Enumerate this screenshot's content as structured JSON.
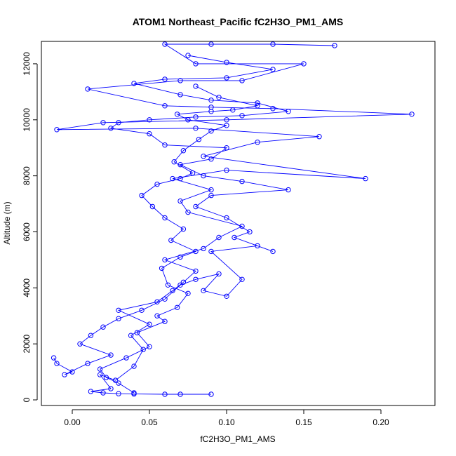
{
  "chart_data": {
    "type": "scatter",
    "title": "ATOM1 Northeast_Pacific fC2H3O_PM1_AMS",
    "xlabel": "fC2H3O_PM1_AMS",
    "ylabel": "Altitude (m)",
    "xlim": [
      -0.02,
      0.235
    ],
    "ylim": [
      -200,
      12800
    ],
    "xticks": [
      0.0,
      0.05,
      0.1,
      0.15,
      0.2
    ],
    "xtick_labels": [
      "0.00",
      "0.05",
      "0.10",
      "0.15",
      "0.20"
    ],
    "yticks": [
      0,
      2000,
      4000,
      6000,
      8000,
      10000,
      12000
    ],
    "ytick_labels": [
      "0",
      "2000",
      "4000",
      "6000",
      "8000",
      "10000",
      "12000"
    ],
    "grid": false,
    "connected": true,
    "marker": "open-circle",
    "color": "#0000ff",
    "series": [
      {
        "name": "",
        "points": [
          [
            0.09,
            200
          ],
          [
            0.07,
            200
          ],
          [
            0.06,
            200
          ],
          [
            0.04,
            210
          ],
          [
            0.03,
            220
          ],
          [
            0.02,
            250
          ],
          [
            0.012,
            300
          ],
          [
            0.025,
            400
          ],
          [
            0.018,
            900
          ],
          [
            0.028,
            700
          ],
          [
            0.04,
            1200
          ],
          [
            0.046,
            1800
          ],
          [
            0.038,
            2300
          ],
          [
            0.05,
            2700
          ],
          [
            0.03,
            3200
          ],
          [
            0.055,
            3500
          ],
          [
            0.065,
            3900
          ],
          [
            0.072,
            4200
          ],
          [
            0.08,
            4600
          ],
          [
            0.06,
            5000
          ],
          [
            0.085,
            5400
          ],
          [
            0.095,
            5800
          ],
          [
            0.11,
            6200
          ],
          [
            0.075,
            6700
          ],
          [
            0.07,
            7100
          ],
          [
            0.09,
            7500
          ],
          [
            0.065,
            7900
          ],
          [
            0.1,
            8200
          ],
          [
            0.19,
            7900
          ],
          [
            0.085,
            8700
          ],
          [
            0.12,
            9200
          ],
          [
            0.16,
            9400
          ],
          [
            0.08,
            9700
          ],
          [
            -0.01,
            9650
          ],
          [
            0.02,
            9900
          ],
          [
            0.1,
            10000
          ],
          [
            0.22,
            10200
          ],
          [
            0.13,
            10400
          ],
          [
            0.09,
            10450
          ],
          [
            0.06,
            10500
          ],
          [
            0.01,
            11100
          ],
          [
            0.07,
            11400
          ],
          [
            0.11,
            11400
          ],
          [
            0.15,
            12000
          ],
          [
            0.08,
            12000
          ],
          [
            0.06,
            12700
          ],
          [
            0.09,
            12700
          ],
          [
            0.13,
            12700
          ],
          [
            0.17,
            12650
          ]
        ]
      },
      {
        "name": "",
        "points": [
          [
            -0.012,
            1500
          ],
          [
            -0.01,
            1300
          ],
          [
            0.0,
            1000
          ],
          [
            -0.005,
            900
          ],
          [
            0.01,
            1300
          ],
          [
            0.025,
            1600
          ],
          [
            0.005,
            2000
          ],
          [
            0.012,
            2300
          ],
          [
            0.02,
            2600
          ],
          [
            0.03,
            2900
          ],
          [
            0.045,
            3200
          ],
          [
            0.06,
            3600
          ],
          [
            0.07,
            4100
          ],
          [
            0.08,
            4300
          ],
          [
            0.095,
            4500
          ],
          [
            0.085,
            3900
          ],
          [
            0.1,
            3700
          ],
          [
            0.11,
            4300
          ],
          [
            0.09,
            5300
          ],
          [
            0.12,
            5500
          ],
          [
            0.13,
            5300
          ],
          [
            0.105,
            5800
          ],
          [
            0.115,
            6000
          ],
          [
            0.1,
            6500
          ],
          [
            0.08,
            6900
          ],
          [
            0.09,
            7300
          ],
          [
            0.14,
            7500
          ],
          [
            0.11,
            7800
          ],
          [
            0.085,
            8000
          ],
          [
            0.07,
            8400
          ],
          [
            0.09,
            8600
          ],
          [
            0.1,
            9000
          ],
          [
            0.06,
            9100
          ],
          [
            0.05,
            9500
          ],
          [
            0.025,
            9700
          ],
          [
            0.03,
            9900
          ],
          [
            0.05,
            10000
          ],
          [
            0.08,
            10100
          ],
          [
            0.11,
            10150
          ],
          [
            0.14,
            10300
          ],
          [
            0.12,
            10600
          ],
          [
            0.09,
            10700
          ],
          [
            0.07,
            10900
          ],
          [
            0.04,
            11300
          ],
          [
            0.06,
            11450
          ],
          [
            0.1,
            11500
          ],
          [
            0.13,
            11800
          ],
          [
            0.1,
            12050
          ],
          [
            0.075,
            12300
          ]
        ]
      },
      {
        "name": "",
        "points": [
          [
            0.04,
            250
          ],
          [
            0.03,
            600
          ],
          [
            0.022,
            800
          ],
          [
            0.018,
            1100
          ],
          [
            0.035,
            1500
          ],
          [
            0.05,
            1900
          ],
          [
            0.042,
            2400
          ],
          [
            0.06,
            2800
          ],
          [
            0.055,
            3000
          ],
          [
            0.068,
            3300
          ],
          [
            0.075,
            3800
          ],
          [
            0.062,
            4100
          ],
          [
            0.058,
            4700
          ],
          [
            0.07,
            5100
          ],
          [
            0.08,
            5300
          ],
          [
            0.064,
            5700
          ],
          [
            0.072,
            6100
          ],
          [
            0.06,
            6500
          ],
          [
            0.052,
            6900
          ],
          [
            0.045,
            7300
          ],
          [
            0.055,
            7700
          ],
          [
            0.07,
            7900
          ],
          [
            0.078,
            8100
          ],
          [
            0.066,
            8500
          ],
          [
            0.072,
            8900
          ],
          [
            0.082,
            9300
          ],
          [
            0.09,
            9600
          ],
          [
            0.1,
            9800
          ],
          [
            0.075,
            10000
          ],
          [
            0.068,
            10200
          ],
          [
            0.09,
            10300
          ],
          [
            0.104,
            10350
          ],
          [
            0.12,
            10500
          ],
          [
            0.095,
            10800
          ],
          [
            0.08,
            11200
          ]
        ]
      }
    ]
  }
}
